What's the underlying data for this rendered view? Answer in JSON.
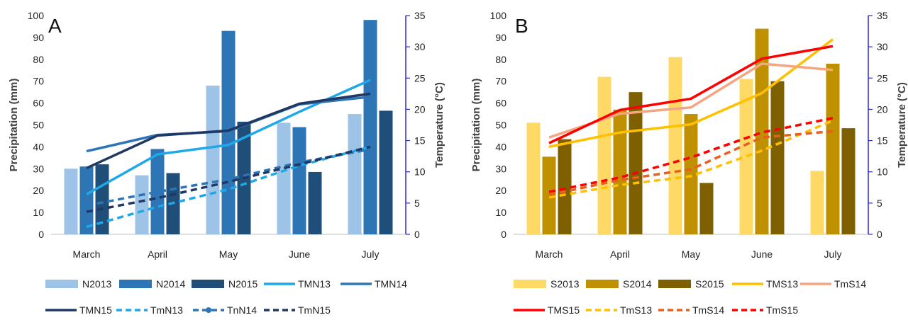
{
  "chart_data": [
    {
      "type": "bar",
      "panel_label": "A",
      "categories": [
        "March",
        "April",
        "May",
        "June",
        "July"
      ],
      "ylabel": "Precipitation (mm)",
      "y2label": "Temperature (°C)",
      "ylim": [
        0,
        100
      ],
      "y2lim": [
        0,
        35
      ],
      "yticks": [
        0,
        10,
        20,
        30,
        40,
        50,
        60,
        70,
        80,
        90,
        100
      ],
      "y2ticks": [
        0,
        5,
        10,
        15,
        20,
        25,
        30,
        35
      ],
      "legend_position": "bottom",
      "bar_series": [
        {
          "name": "N2013",
          "color": "#9DC3E6",
          "values": [
            30,
            27,
            68,
            51,
            55
          ]
        },
        {
          "name": "N2014",
          "color": "#2E75B6",
          "values": [
            31,
            39,
            93,
            49,
            98
          ]
        },
        {
          "name": "N2015",
          "color": "#1F4E79",
          "values": [
            32,
            28,
            51.5,
            28.5,
            56.5
          ]
        }
      ],
      "line_series": [
        {
          "name": "TMN13",
          "color": "#1FA8E8",
          "style": "solid",
          "marker": false,
          "values": [
            6.4,
            12.8,
            14.3,
            19.6,
            24.7
          ]
        },
        {
          "name": "TMN14",
          "color": "#2E75B6",
          "style": "solid",
          "marker": false,
          "values": [
            13.3,
            15.9,
            16.5,
            20.8,
            22.0
          ]
        },
        {
          "name": "TMN15",
          "color": "#1F3864",
          "style": "solid",
          "marker": false,
          "values": [
            10.6,
            15.8,
            16.6,
            20.9,
            22.5
          ]
        },
        {
          "name": "TmN13",
          "color": "#1FA8E8",
          "style": "dashed",
          "marker": false,
          "values": [
            1.2,
            4.4,
            7.2,
            11.0,
            14.0
          ]
        },
        {
          "name": "TnN14",
          "color": "#2E75B6",
          "style": "dashed",
          "marker": true,
          "values": [
            4.6,
            6.8,
            8.8,
            11.5,
            13.6
          ]
        },
        {
          "name": "TmN15",
          "color": "#1F3864",
          "style": "dashed",
          "marker": false,
          "values": [
            3.6,
            5.8,
            8.4,
            11.2,
            14.0
          ]
        }
      ],
      "legend_rows": [
        [
          "N2013",
          "N2014",
          "N2015",
          "TMN13",
          "TMN14"
        ],
        [
          "TMN15",
          "TmN13",
          "TnN14",
          "TmN15"
        ]
      ]
    },
    {
      "type": "bar",
      "panel_label": "B",
      "categories": [
        "March",
        "April",
        "May",
        "June",
        "July"
      ],
      "ylabel": "Precipitation (mm)",
      "y2label": "Temperature (°C)",
      "ylim": [
        0,
        100
      ],
      "y2lim": [
        0,
        35
      ],
      "yticks": [
        0,
        10,
        20,
        30,
        40,
        50,
        60,
        70,
        80,
        90,
        100
      ],
      "y2ticks": [
        0,
        5,
        10,
        15,
        20,
        25,
        30,
        35
      ],
      "legend_position": "bottom",
      "bar_series": [
        {
          "name": "S2013",
          "color": "#FFD966",
          "values": [
            51,
            72,
            81,
            71,
            29
          ]
        },
        {
          "name": "S2014",
          "color": "#BF9000",
          "values": [
            35.5,
            57,
            55,
            94,
            78
          ]
        },
        {
          "name": "S2015",
          "color": "#7F6000",
          "values": [
            43.5,
            65,
            23.5,
            70,
            48.5
          ]
        }
      ],
      "line_series": [
        {
          "name": "TMS13",
          "color": "#FFC000",
          "style": "solid",
          "values": [
            14.0,
            16.3,
            17.6,
            22.6,
            31.2
          ]
        },
        {
          "name": "TmS14",
          "color": "#F4A582",
          "style": "solid",
          "values": [
            15.5,
            19.3,
            20.3,
            27.3,
            26.3
          ]
        },
        {
          "name": "TMS15",
          "color": "#FF0000",
          "style": "solid",
          "values": [
            14.6,
            19.9,
            21.7,
            28.1,
            30.1
          ]
        },
        {
          "name": "TmS13",
          "color": "#FFC000",
          "style": "dashed",
          "values": [
            5.9,
            7.9,
            9.3,
            13.4,
            18.2
          ]
        },
        {
          "name": "TmS14",
          "color": "#E8601C",
          "style": "dashed",
          "values": [
            6.3,
            8.7,
            10.4,
            15.5,
            16.5
          ]
        },
        {
          "name": "TmS15",
          "color": "#FF0000",
          "style": "dashed",
          "values": [
            6.8,
            9.1,
            12.3,
            16.3,
            18.6
          ]
        }
      ],
      "legend_rows": [
        [
          "S2013",
          "S2014",
          "S2015",
          "TMS13",
          "TmS14"
        ],
        [
          "TMS15",
          "TmS13",
          "TmS14",
          "TmS15"
        ]
      ]
    }
  ]
}
